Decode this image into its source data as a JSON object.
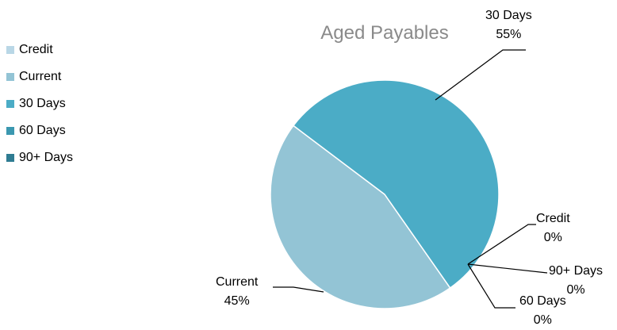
{
  "chart_data": {
    "type": "pie",
    "title": "Aged Payables",
    "legend_position": "left",
    "slices": [
      {
        "name": "Credit",
        "value": 0,
        "label_pct": "0%",
        "color": "#b9d7e6"
      },
      {
        "name": "Current",
        "value": 45,
        "label_pct": "45%",
        "color": "#93c4d5"
      },
      {
        "name": "30 Days",
        "value": 55,
        "label_pct": "55%",
        "color": "#4bacc6"
      },
      {
        "name": "60 Days",
        "value": 0,
        "label_pct": "0%",
        "color": "#3b98b0"
      },
      {
        "name": "90+ Days",
        "value": 0,
        "label_pct": "0%",
        "color": "#2f7c92"
      }
    ]
  }
}
